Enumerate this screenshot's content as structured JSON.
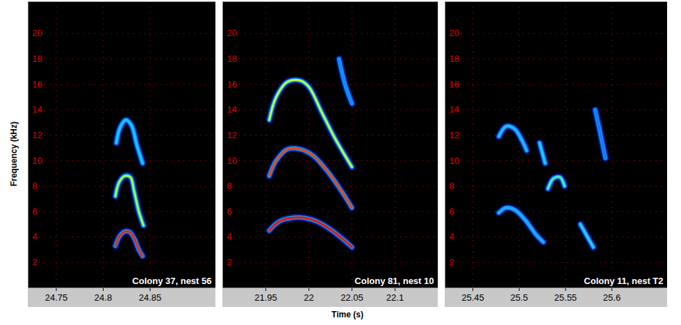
{
  "chart_data": [
    {
      "type": "line",
      "title": "Colony 37, nest 56",
      "ylabel": "Frequency (kHz)",
      "xlim": [
        24.72,
        24.92
      ],
      "xticks": [
        24.75,
        24.8,
        24.85
      ],
      "ylim": [
        0,
        22.5
      ],
      "yticks": [
        2,
        4,
        6,
        8,
        10,
        12,
        14,
        16,
        18,
        20
      ],
      "grid": true,
      "series": [
        {
          "color": "#ff2000",
          "x": [
            24.813,
            24.817,
            24.822,
            24.828,
            24.833,
            24.838,
            24.842
          ],
          "values": [
            3.3,
            4.0,
            4.4,
            4.4,
            3.9,
            3.0,
            2.5
          ]
        },
        {
          "color": "#a0ff40",
          "x": [
            24.813,
            24.817,
            24.823,
            24.829,
            24.833,
            24.838,
            24.843
          ],
          "values": [
            7.2,
            8.3,
            8.8,
            8.7,
            7.6,
            6.0,
            4.9
          ]
        },
        {
          "color": "#20c0ff",
          "x": [
            24.814,
            24.818,
            24.824,
            24.83,
            24.836,
            24.842
          ],
          "values": [
            11.4,
            12.6,
            13.2,
            12.8,
            11.2,
            9.8
          ]
        }
      ]
    },
    {
      "type": "line",
      "title": "Colony 81, nest 10",
      "xlabel": "Time (s)",
      "xlim": [
        21.9,
        22.15
      ],
      "xticks": [
        21.95,
        22,
        22.05,
        22.1
      ],
      "ylim": [
        0,
        22.5
      ],
      "yticks": [
        2,
        4,
        6,
        8,
        10,
        12,
        14,
        16,
        18,
        20
      ],
      "grid": true,
      "series": [
        {
          "color": "#ff1000",
          "x": [
            21.954,
            21.965,
            21.98,
            21.995,
            22.01,
            22.025,
            22.04,
            22.05
          ],
          "values": [
            4.5,
            5.2,
            5.5,
            5.5,
            5.2,
            4.6,
            3.8,
            3.2
          ]
        },
        {
          "color": "#ff4000",
          "x": [
            21.954,
            21.962,
            21.975,
            21.99,
            22.005,
            22.02,
            22.035,
            22.05
          ],
          "values": [
            8.8,
            10.0,
            10.9,
            10.9,
            10.4,
            9.3,
            7.9,
            6.3
          ]
        },
        {
          "color": "#c0ff30",
          "x": [
            21.954,
            21.962,
            21.975,
            21.99,
            22.0,
            22.015,
            22.03,
            22.05
          ],
          "values": [
            13.2,
            15.0,
            16.2,
            16.3,
            15.8,
            13.8,
            11.8,
            9.5
          ]
        },
        {
          "color": "#2080ff",
          "x": [
            22.035,
            22.042,
            22.05
          ],
          "values": [
            18.0,
            16.0,
            14.5
          ]
        }
      ]
    },
    {
      "type": "line",
      "title": "Colony 11, nest T2",
      "xlim": [
        25.42,
        25.66
      ],
      "xticks": [
        25.45,
        25.5,
        25.55,
        25.6
      ],
      "ylim": [
        0,
        22.5
      ],
      "yticks": [
        2,
        4,
        6,
        8,
        10,
        12,
        14,
        16,
        18,
        20
      ],
      "grid": true,
      "series": [
        {
          "color": "#30a0ff",
          "x": [
            25.478,
            25.486,
            25.496,
            25.508,
            25.518,
            25.526
          ],
          "values": [
            5.9,
            6.3,
            6.1,
            5.2,
            4.2,
            3.6
          ]
        },
        {
          "color": "#30b0ff",
          "x": [
            25.478,
            25.486,
            25.495,
            25.503,
            25.508
          ],
          "values": [
            11.9,
            12.7,
            12.5,
            11.6,
            10.8
          ]
        },
        {
          "color": "#30c0ff",
          "x": [
            25.522,
            25.528
          ],
          "values": [
            11.4,
            9.8
          ]
        },
        {
          "color": "#60e0c0",
          "x": [
            25.531,
            25.537,
            25.544,
            25.549
          ],
          "values": [
            7.8,
            8.6,
            8.7,
            8.0
          ]
        },
        {
          "color": "#40c0ff",
          "x": [
            25.566,
            25.573,
            25.58
          ],
          "values": [
            5.0,
            4.1,
            3.2
          ]
        },
        {
          "color": "#2070ff",
          "x": [
            25.582,
            25.588,
            25.593
          ],
          "values": [
            14.0,
            12.0,
            10.2
          ]
        }
      ]
    }
  ]
}
